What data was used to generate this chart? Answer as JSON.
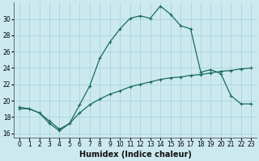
{
  "xlabel": "Humidex (Indice chaleur)",
  "ylabel": "",
  "background_color": "#cce9f0",
  "grid_color": "#aad4dd",
  "line_color": "#1a6b5a",
  "xlim": [
    -0.5,
    23.5
  ],
  "ylim": [
    15.5,
    32.0
  ],
  "yticks": [
    16,
    18,
    20,
    22,
    24,
    26,
    28,
    30
  ],
  "xticks": [
    0,
    1,
    2,
    3,
    4,
    5,
    6,
    7,
    8,
    9,
    10,
    11,
    12,
    13,
    14,
    15,
    16,
    17,
    18,
    19,
    20,
    21,
    22,
    23
  ],
  "series1_x": [
    0,
    1,
    2,
    3,
    4,
    5,
    6,
    7,
    8,
    9,
    10,
    11,
    12,
    13,
    14,
    15,
    16,
    17,
    18,
    19,
    20,
    21,
    22,
    23
  ],
  "series1_y": [
    19.2,
    19.0,
    18.5,
    17.2,
    16.3,
    17.2,
    19.5,
    21.8,
    25.2,
    27.2,
    28.8,
    30.1,
    30.4,
    30.1,
    31.6,
    30.6,
    29.2,
    28.8,
    23.5,
    23.8,
    23.3,
    20.6,
    19.6,
    19.6
  ],
  "series2_x": [
    0,
    1,
    2,
    3,
    4,
    5,
    6,
    7,
    8,
    9,
    10,
    11,
    12,
    13,
    14,
    15,
    16,
    17,
    18,
    19,
    20,
    21,
    22,
    23
  ],
  "series2_y": [
    19.0,
    19.0,
    18.5,
    17.5,
    16.5,
    17.2,
    18.5,
    19.5,
    20.2,
    20.8,
    21.2,
    21.7,
    22.0,
    22.3,
    22.6,
    22.8,
    22.9,
    23.1,
    23.2,
    23.4,
    23.6,
    23.7,
    23.9,
    24.0
  ],
  "marker": "+",
  "markersize": 3,
  "linewidth": 0.9,
  "xlabel_fontsize": 7,
  "tick_fontsize": 5.5
}
